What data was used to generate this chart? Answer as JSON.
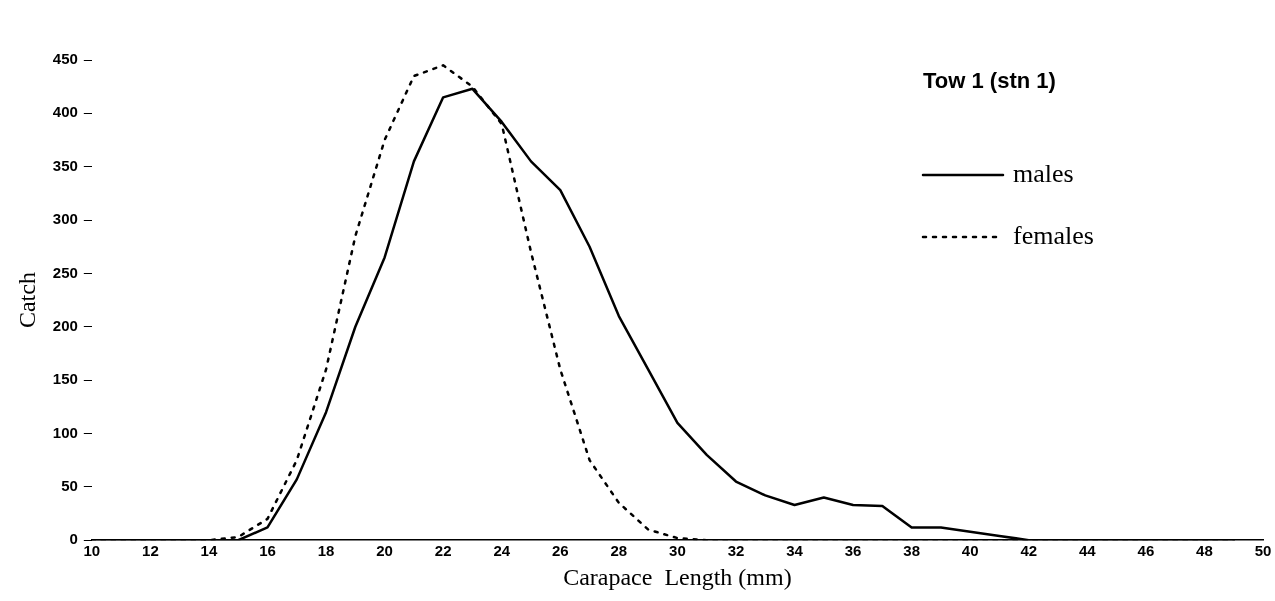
{
  "chart_data": {
    "type": "line",
    "title": "Tow 1 (stn 1)",
    "xlabel": "Carapace  Length (mm)",
    "ylabel": "Catch",
    "x": [
      10,
      11,
      12,
      13,
      14,
      15,
      16,
      17,
      18,
      19,
      20,
      21,
      22,
      23,
      24,
      25,
      26,
      27,
      28,
      29,
      30,
      31,
      32,
      33,
      34,
      35,
      36,
      37,
      38,
      39,
      40,
      41,
      42,
      43,
      44,
      45,
      46,
      47,
      48,
      49
    ],
    "series": [
      {
        "name": "males",
        "color": "#000000",
        "line_style": "solid",
        "values": [
          0,
          0,
          0,
          0,
          0,
          0,
          12,
          57,
          120,
          200,
          265,
          355,
          415,
          423,
          392,
          355,
          328,
          275,
          210,
          160,
          110,
          80,
          55,
          42,
          33,
          40,
          33,
          32,
          12,
          12,
          8,
          4,
          0,
          0,
          0,
          0,
          0,
          0,
          0,
          0
        ]
      },
      {
        "name": "females",
        "color": "#000000",
        "line_style": "dotted",
        "values": [
          0,
          0,
          0,
          0,
          0,
          3,
          20,
          75,
          160,
          285,
          375,
          435,
          445,
          425,
          390,
          270,
          160,
          75,
          35,
          10,
          2,
          0,
          0,
          0,
          0,
          0,
          0,
          0,
          0,
          0,
          0,
          0,
          0,
          0,
          0,
          0,
          0,
          0,
          0,
          0
        ]
      }
    ],
    "xlim": [
      10,
      50
    ],
    "xticks": [
      10,
      12,
      14,
      16,
      18,
      20,
      22,
      24,
      26,
      28,
      30,
      32,
      34,
      36,
      38,
      40,
      42,
      44,
      46,
      48,
      50
    ],
    "ylim": [
      0,
      450
    ],
    "yticks": [
      0,
      50,
      100,
      150,
      200,
      250,
      300,
      350,
      400,
      450
    ],
    "grid": false,
    "legend": "top right",
    "marker": "none"
  }
}
